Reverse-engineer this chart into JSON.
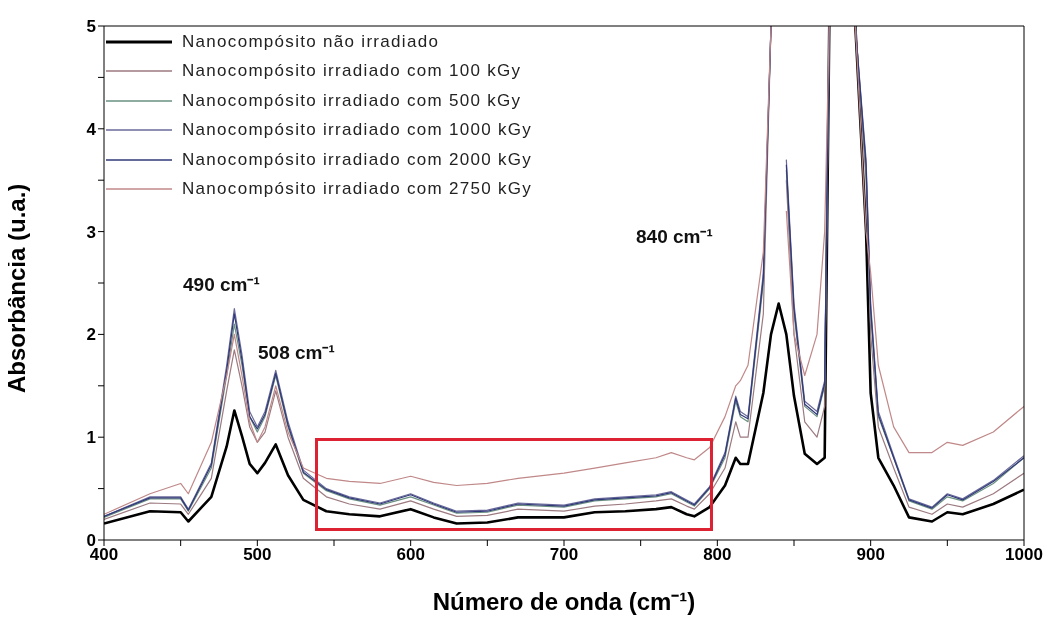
{
  "chart_data": {
    "type": "line",
    "xlabel": "Número de onda (cm⁻¹)",
    "ylabel": "Absorbância (u.a.)",
    "x": [
      400,
      430,
      450,
      455,
      470,
      480,
      485,
      490,
      495,
      500,
      505,
      512,
      520,
      530,
      545,
      560,
      580,
      600,
      615,
      630,
      650,
      670,
      700,
      720,
      740,
      760,
      770,
      780,
      785,
      795,
      805,
      812,
      815,
      820,
      830,
      835,
      840,
      845,
      850,
      857,
      865,
      870,
      873,
      880,
      890,
      897,
      900,
      905,
      915,
      925,
      940,
      950,
      960,
      980,
      1000
    ],
    "series": [
      {
        "name": "Nanocompósito não irradiado",
        "color": "#000000",
        "values": [
          0.16,
          0.28,
          0.27,
          0.18,
          0.42,
          0.91,
          1.26,
          1.01,
          0.74,
          0.65,
          0.75,
          0.93,
          0.63,
          0.39,
          0.28,
          0.25,
          0.23,
          0.3,
          0.22,
          0.16,
          0.17,
          0.22,
          0.22,
          0.27,
          0.28,
          0.3,
          0.32,
          0.25,
          0.23,
          0.32,
          0.53,
          0.8,
          0.74,
          0.74,
          1.43,
          2.0,
          2.3,
          2.0,
          1.4,
          0.84,
          0.74,
          0.8,
          5.0,
          null,
          5.0,
          3.0,
          1.43,
          0.8,
          0.53,
          0.22,
          0.18,
          0.27,
          0.25,
          0.35,
          0.49
        ]
      },
      {
        "name": "Nanocompósito irradiado com 100 kGy",
        "color": "#9c7a80",
        "values": [
          0.2,
          0.36,
          0.35,
          0.25,
          0.6,
          1.45,
          1.85,
          1.5,
          1.1,
          0.95,
          1.05,
          1.45,
          1.0,
          0.6,
          0.42,
          0.35,
          0.3,
          0.38,
          0.3,
          0.23,
          0.24,
          0.3,
          0.28,
          0.33,
          0.35,
          0.38,
          0.4,
          0.33,
          0.3,
          0.45,
          0.7,
          1.15,
          1.0,
          1.0,
          2.2,
          5.0,
          null,
          3.5,
          2.0,
          1.15,
          1.0,
          1.3,
          5.0,
          null,
          5.0,
          3.5,
          2.0,
          1.1,
          0.7,
          0.32,
          0.25,
          0.35,
          0.32,
          0.45,
          0.65
        ]
      },
      {
        "name": "Nanocompósito irradiado com 500 kGy",
        "color": "#6a9080",
        "values": [
          0.22,
          0.4,
          0.4,
          0.28,
          0.7,
          1.6,
          2.1,
          1.7,
          1.2,
          1.05,
          1.2,
          1.6,
          1.1,
          0.65,
          0.48,
          0.4,
          0.34,
          0.42,
          0.34,
          0.26,
          0.27,
          0.34,
          0.32,
          0.38,
          0.4,
          0.42,
          0.45,
          0.37,
          0.33,
          0.5,
          0.8,
          1.35,
          1.2,
          1.15,
          2.5,
          5.0,
          null,
          3.6,
          2.2,
          1.3,
          1.2,
          1.5,
          5.0,
          null,
          5.0,
          3.6,
          2.2,
          1.2,
          0.8,
          0.38,
          0.3,
          0.42,
          0.38,
          0.55,
          0.8
        ]
      },
      {
        "name": "Nanocompósito irradiado com 1000 kGy",
        "color": "#6a6a9a",
        "values": [
          0.23,
          0.42,
          0.42,
          0.3,
          0.75,
          1.7,
          2.25,
          1.8,
          1.25,
          1.1,
          1.25,
          1.65,
          1.15,
          0.68,
          0.5,
          0.42,
          0.36,
          0.45,
          0.36,
          0.28,
          0.29,
          0.36,
          0.34,
          0.4,
          0.42,
          0.44,
          0.47,
          0.39,
          0.35,
          0.52,
          0.85,
          1.4,
          1.25,
          1.2,
          2.6,
          5.0,
          null,
          3.7,
          2.3,
          1.35,
          1.25,
          1.55,
          5.0,
          null,
          5.0,
          3.7,
          2.3,
          1.25,
          0.82,
          0.4,
          0.32,
          0.45,
          0.4,
          0.58,
          0.82
        ]
      },
      {
        "name": "Nanocompósito irradiado com 2000 kGy",
        "color": "#303878",
        "values": [
          0.23,
          0.41,
          0.41,
          0.29,
          0.73,
          1.65,
          2.2,
          1.75,
          1.2,
          1.08,
          1.22,
          1.62,
          1.12,
          0.66,
          0.49,
          0.41,
          0.35,
          0.44,
          0.35,
          0.27,
          0.28,
          0.35,
          0.33,
          0.39,
          0.41,
          0.43,
          0.46,
          0.38,
          0.34,
          0.51,
          0.83,
          1.38,
          1.22,
          1.18,
          2.55,
          5.0,
          null,
          3.65,
          2.25,
          1.32,
          1.22,
          1.52,
          5.0,
          null,
          5.0,
          3.65,
          2.25,
          1.22,
          0.8,
          0.39,
          0.31,
          0.44,
          0.39,
          0.57,
          0.8
        ]
      },
      {
        "name": "Nanocompósito irradiado com 2750 kGy",
        "color": "#c08888",
        "values": [
          0.25,
          0.45,
          0.55,
          0.45,
          0.95,
          1.6,
          2.0,
          1.6,
          1.15,
          0.95,
          1.1,
          1.5,
          1.05,
          0.7,
          0.6,
          0.57,
          0.55,
          0.62,
          0.56,
          0.53,
          0.55,
          0.6,
          0.65,
          0.7,
          0.75,
          0.8,
          0.85,
          0.8,
          0.78,
          0.9,
          1.2,
          1.5,
          1.55,
          1.7,
          2.8,
          5.0,
          null,
          3.2,
          2.0,
          1.6,
          2.0,
          3.0,
          5.0,
          null,
          5.0,
          3.0,
          2.6,
          1.7,
          1.1,
          0.85,
          0.85,
          0.95,
          0.92,
          1.05,
          1.3
        ]
      }
    ],
    "xlim": [
      400,
      1000
    ],
    "xticks": [
      400,
      {
        "value": 450,
        "label": null
      },
      500,
      {
        "value": 550,
        "label": null
      },
      600,
      {
        "value": 650,
        "label": null
      },
      700,
      {
        "value": 750,
        "label": null
      },
      800,
      {
        "value": 850,
        "label": null
      },
      900,
      {
        "value": 950,
        "label": null
      },
      1000
    ],
    "ylim": [
      0,
      5
    ],
    "yticks": [
      0,
      {
        "value": 0.5,
        "label": null
      },
      1,
      {
        "value": 1.5,
        "label": null
      },
      2,
      {
        "value": 2.5,
        "label": null
      },
      3,
      {
        "value": 3.5,
        "label": null
      },
      4,
      {
        "value": 4.5,
        "label": null
      },
      5
    ],
    "annotations": [
      "490 cm⁻¹",
      "508 cm⁻¹",
      "840 cm⁻¹"
    ],
    "legend": "top left",
    "grid": false,
    "marker": "none",
    "line_style": "solid"
  }
}
